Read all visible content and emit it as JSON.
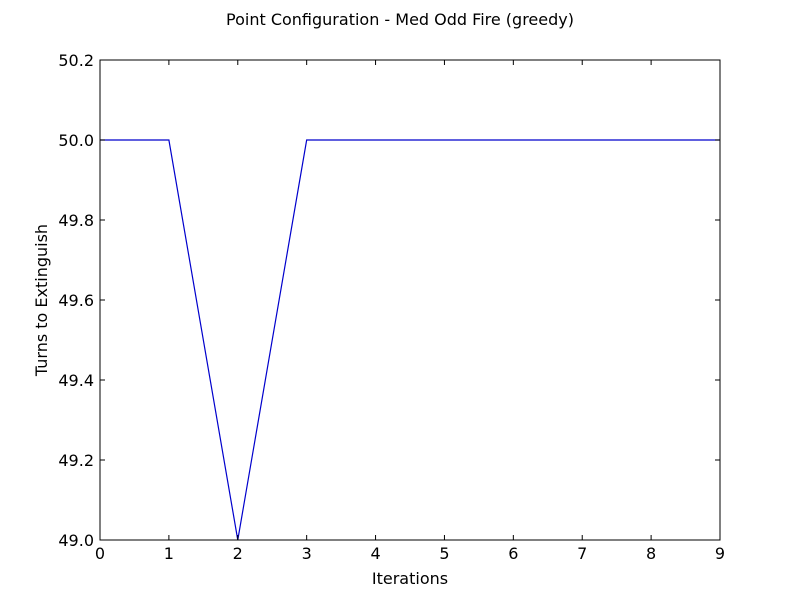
{
  "chart_data": {
    "type": "line",
    "title": "Point Configuration - Med Odd Fire (greedy)",
    "xlabel": "Iterations",
    "ylabel": "Turns to Extinguish",
    "xlim": [
      0,
      9
    ],
    "ylim": [
      49.0,
      50.2
    ],
    "xticks": [
      0,
      1,
      2,
      3,
      4,
      5,
      6,
      7,
      8,
      9
    ],
    "xtick_labels": [
      "0",
      "1",
      "2",
      "3",
      "4",
      "5",
      "6",
      "7",
      "8",
      "9"
    ],
    "yticks": [
      49.0,
      49.2,
      49.4,
      49.6,
      49.8,
      50.0,
      50.2
    ],
    "ytick_labels": [
      "49.0",
      "49.2",
      "49.4",
      "49.6",
      "49.8",
      "50.0",
      "50.2"
    ],
    "grid": false,
    "series": [
      {
        "color": "#0000cc",
        "x": [
          0,
          1,
          2,
          3,
          4,
          5,
          6,
          7,
          8,
          9
        ],
        "y": [
          50.0,
          50.0,
          49.0,
          50.0,
          50.0,
          50.0,
          50.0,
          50.0,
          50.0,
          50.0
        ]
      }
    ]
  }
}
